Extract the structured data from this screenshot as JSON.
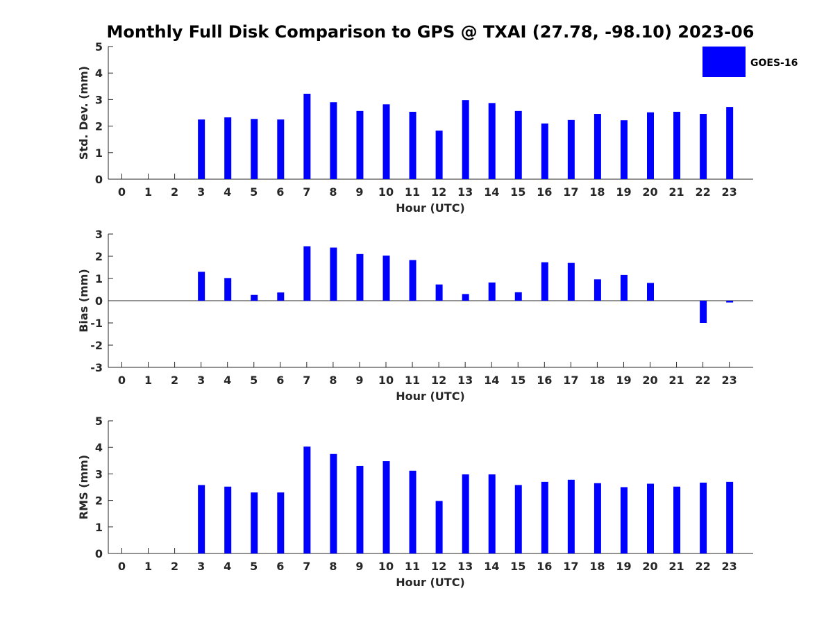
{
  "chart_data": {
    "title": "Monthly Full Disk Comparison to GPS @ TXAI (27.78, -98.10) 2023-06",
    "type": "bar",
    "legend": {
      "placement": "top-right",
      "entries": [
        "GOES-16"
      ]
    },
    "colors": {
      "series": "#0000ff",
      "axis": "#262626"
    },
    "grid": false,
    "panels": [
      {
        "type": "bar",
        "ylabel": "Std. Dev. (mm)",
        "xlabel": "Hour (UTC)",
        "ylim": [
          0,
          5
        ],
        "yticks": [
          0,
          1,
          2,
          3,
          4,
          5
        ],
        "categories": [
          "0",
          "1",
          "2",
          "3",
          "4",
          "5",
          "6",
          "7",
          "8",
          "9",
          "10",
          "11",
          "12",
          "13",
          "14",
          "15",
          "16",
          "17",
          "18",
          "19",
          "20",
          "21",
          "22",
          "23"
        ],
        "series": [
          {
            "name": "GOES-16",
            "values": [
              null,
              null,
              null,
              2.25,
              2.33,
              2.27,
              2.25,
              3.22,
              2.9,
              2.57,
              2.82,
              2.54,
              1.83,
              2.98,
              2.87,
              2.57,
              2.1,
              2.23,
              2.46,
              2.22,
              2.52,
              2.54,
              2.46,
              2.72
            ]
          }
        ]
      },
      {
        "type": "bar",
        "ylabel": "Bias (mm)",
        "xlabel": "Hour (UTC)",
        "ylim": [
          -3,
          3
        ],
        "yticks": [
          -3,
          -2,
          -1,
          0,
          1,
          2,
          3
        ],
        "categories": [
          "0",
          "1",
          "2",
          "3",
          "4",
          "5",
          "6",
          "7",
          "8",
          "9",
          "10",
          "11",
          "12",
          "13",
          "14",
          "15",
          "16",
          "17",
          "18",
          "19",
          "20",
          "21",
          "22",
          "23"
        ],
        "series": [
          {
            "name": "GOES-16",
            "values": [
              null,
              null,
              null,
              1.3,
              1.02,
              0.26,
              0.37,
              2.45,
              2.39,
              2.1,
              2.03,
              1.83,
              0.73,
              0.3,
              0.82,
              0.38,
              1.73,
              1.7,
              0.96,
              1.16,
              0.8,
              0.0,
              -1.0,
              -0.08
            ]
          }
        ]
      },
      {
        "type": "bar",
        "ylabel": "RMS (mm)",
        "xlabel": "Hour (UTC)",
        "ylim": [
          0,
          5
        ],
        "yticks": [
          0,
          1,
          2,
          3,
          4,
          5
        ],
        "categories": [
          "0",
          "1",
          "2",
          "3",
          "4",
          "5",
          "6",
          "7",
          "8",
          "9",
          "10",
          "11",
          "12",
          "13",
          "14",
          "15",
          "16",
          "17",
          "18",
          "19",
          "20",
          "21",
          "22",
          "23"
        ],
        "series": [
          {
            "name": "GOES-16",
            "values": [
              null,
              null,
              null,
              2.58,
              2.52,
              2.3,
              2.3,
              4.03,
              3.75,
              3.3,
              3.48,
              3.12,
              1.98,
              2.98,
              2.98,
              2.58,
              2.7,
              2.78,
              2.65,
              2.5,
              2.63,
              2.52,
              2.67,
              2.7
            ]
          }
        ]
      }
    ]
  }
}
